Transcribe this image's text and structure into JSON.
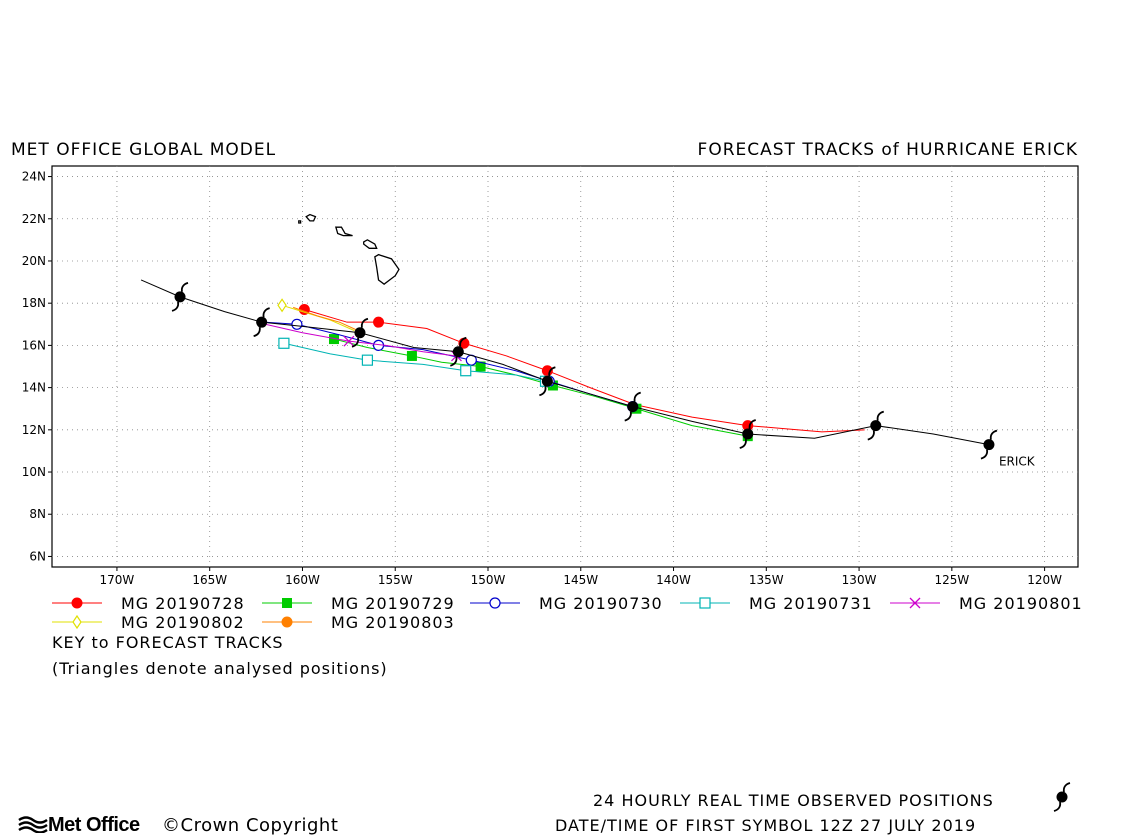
{
  "header": {
    "left_title": "MET OFFICE GLOBAL MODEL",
    "right_title": "FORECAST TRACKS of HURRICANE ERICK"
  },
  "legend": {
    "key_title": "KEY to FORECAST TRACKS",
    "note": "(Triangles denote analysed positions)"
  },
  "footer": {
    "logo_text": "Met Office",
    "copyright": "©Crown Copyright",
    "line1": "24 HOURLY REAL TIME OBSERVED POSITIONS",
    "line2": "DATE/TIME OF FIRST SYMBOL 12Z 27 JULY 2019"
  },
  "chart_data": {
    "type": "line",
    "xlim": [
      -173.5,
      -118.2
    ],
    "ylim": [
      5.5,
      24.5
    ],
    "x_ticks": [
      -170,
      -165,
      -160,
      -155,
      -150,
      -145,
      -140,
      -135,
      -130,
      -125,
      -120
    ],
    "x_tick_labels": [
      "170W",
      "165W",
      "160W",
      "155W",
      "150W",
      "145W",
      "140W",
      "135W",
      "130W",
      "125W",
      "120W"
    ],
    "y_ticks": [
      6,
      8,
      10,
      12,
      14,
      16,
      18,
      20,
      22,
      24
    ],
    "y_tick_labels": [
      "6N",
      "8N",
      "10N",
      "12N",
      "14N",
      "16N",
      "18N",
      "20N",
      "22N",
      "24N"
    ],
    "grid": true,
    "storm_label": "ERICK",
    "observed": {
      "color": "#000000",
      "line": [
        [
          -168.7,
          19.1
        ],
        [
          -166.6,
          18.3
        ],
        [
          -164.2,
          17.6
        ],
        [
          -162.2,
          17.1
        ],
        [
          -160.0,
          16.9
        ],
        [
          -156.9,
          16.6
        ],
        [
          -154.0,
          15.9
        ],
        [
          -151.6,
          15.7
        ],
        [
          -149.2,
          15.1
        ],
        [
          -146.8,
          14.3
        ],
        [
          -144.5,
          13.7
        ],
        [
          -142.2,
          13.1
        ],
        [
          -139.0,
          12.4
        ],
        [
          -136.0,
          11.8
        ],
        [
          -132.4,
          11.6
        ],
        [
          -129.1,
          12.2
        ],
        [
          -126.0,
          11.8
        ],
        [
          -123.0,
          11.3
        ]
      ],
      "symbols": [
        [
          -166.6,
          18.3
        ],
        [
          -162.2,
          17.1
        ],
        [
          -156.9,
          16.6
        ],
        [
          -151.6,
          15.7
        ],
        [
          -146.8,
          14.3
        ],
        [
          -142.2,
          13.1
        ],
        [
          -136.0,
          11.8
        ],
        [
          -129.1,
          12.2
        ],
        [
          -123.0,
          11.3
        ]
      ]
    },
    "series": [
      {
        "name": "MG 20190728",
        "color": "#ff0000",
        "marker": "filled-circle",
        "points": [
          [
            -129.7,
            12.0
          ],
          [
            -132.0,
            11.9
          ],
          [
            -136.0,
            12.2
          ],
          [
            -139.0,
            12.6
          ],
          [
            -142.1,
            13.2
          ],
          [
            -144.5,
            14.0
          ],
          [
            -146.8,
            14.8
          ],
          [
            -149.0,
            15.5
          ],
          [
            -151.3,
            16.1
          ],
          [
            -153.3,
            16.8
          ],
          [
            -155.9,
            17.1
          ],
          [
            -157.6,
            17.1
          ],
          [
            -159.9,
            17.7
          ]
        ],
        "markers": [
          [
            -136.0,
            12.2
          ],
          [
            -146.8,
            14.8
          ],
          [
            -151.3,
            16.1
          ],
          [
            -155.9,
            17.1
          ],
          [
            -159.9,
            17.7
          ]
        ]
      },
      {
        "name": "MG 20190729",
        "color": "#00cc00",
        "marker": "filled-square",
        "points": [
          [
            -136.0,
            11.7
          ],
          [
            -139.0,
            12.2
          ],
          [
            -142.0,
            13.0
          ],
          [
            -144.3,
            13.6
          ],
          [
            -146.5,
            14.1
          ],
          [
            -148.5,
            14.6
          ],
          [
            -150.4,
            15.0
          ],
          [
            -152.5,
            15.2
          ],
          [
            -154.1,
            15.5
          ],
          [
            -156.5,
            15.9
          ],
          [
            -158.3,
            16.3
          ]
        ],
        "markers": [
          [
            -136.0,
            11.7
          ],
          [
            -142.0,
            13.0
          ],
          [
            -146.5,
            14.1
          ],
          [
            -150.4,
            15.0
          ],
          [
            -154.1,
            15.5
          ],
          [
            -158.3,
            16.3
          ]
        ]
      },
      {
        "name": "MG 20190730",
        "color": "#0000cc",
        "marker": "open-circle",
        "points": [
          [
            -142.2,
            13.1
          ],
          [
            -144.5,
            13.7
          ],
          [
            -146.7,
            14.3
          ],
          [
            -148.5,
            14.8
          ],
          [
            -150.9,
            15.3
          ],
          [
            -153.5,
            15.8
          ],
          [
            -155.9,
            16.0
          ],
          [
            -158.0,
            16.5
          ],
          [
            -160.3,
            17.0
          ],
          [
            -162.1,
            17.1
          ]
        ],
        "markers": [
          [
            -142.2,
            13.1
          ],
          [
            -146.7,
            14.3
          ],
          [
            -150.9,
            15.3
          ],
          [
            -155.9,
            16.0
          ],
          [
            -160.3,
            17.0
          ]
        ]
      },
      {
        "name": "MG 20190731",
        "color": "#00b4b4",
        "marker": "open-square",
        "points": [
          [
            -146.9,
            14.3
          ],
          [
            -148.5,
            14.6
          ],
          [
            -151.2,
            14.8
          ],
          [
            -153.5,
            15.1
          ],
          [
            -156.5,
            15.3
          ],
          [
            -158.5,
            15.6
          ],
          [
            -161.0,
            16.1
          ]
        ],
        "markers": [
          [
            -146.9,
            14.3
          ],
          [
            -151.2,
            14.8
          ],
          [
            -156.5,
            15.3
          ],
          [
            -161.0,
            16.1
          ]
        ]
      },
      {
        "name": "MG 20190801",
        "color": "#cc00cc",
        "marker": "cross",
        "points": [
          [
            -151.7,
            15.5
          ],
          [
            -153.5,
            15.7
          ],
          [
            -155.5,
            16.0
          ],
          [
            -157.5,
            16.2
          ],
          [
            -160.0,
            16.6
          ],
          [
            -162.0,
            17.0
          ]
        ],
        "markers": [
          [
            -151.7,
            15.5
          ],
          [
            -157.5,
            16.2
          ]
        ]
      },
      {
        "name": "MG 20190802",
        "color": "#e0e000",
        "marker": "open-diamond",
        "points": [
          [
            -157.2,
            16.7
          ],
          [
            -158.5,
            17.2
          ],
          [
            -160.0,
            17.6
          ],
          [
            -161.1,
            17.9
          ]
        ],
        "markers": [
          [
            -161.1,
            17.9
          ]
        ]
      },
      {
        "name": "MG 20190803",
        "color": "#ff8000",
        "marker": "filled-circle",
        "points": [
          [
            -157.0,
            16.7
          ],
          [
            -158.0,
            17.1
          ],
          [
            -159.2,
            17.4
          ],
          [
            -160.5,
            17.8
          ]
        ],
        "markers": []
      }
    ],
    "islands": [
      [
        [
          -156.1,
          20.2
        ],
        [
          -155.9,
          20.3
        ],
        [
          -155.2,
          20.1
        ],
        [
          -154.8,
          19.6
        ],
        [
          -155.0,
          19.3
        ],
        [
          -155.6,
          18.9
        ],
        [
          -155.9,
          19.1
        ],
        [
          -156.0,
          19.7
        ]
      ],
      [
        [
          -156.7,
          20.9
        ],
        [
          -156.5,
          21.0
        ],
        [
          -156.1,
          20.8
        ],
        [
          -156.0,
          20.6
        ],
        [
          -156.4,
          20.6
        ],
        [
          -156.7,
          20.8
        ]
      ],
      [
        [
          -157.3,
          21.2
        ],
        [
          -157.7,
          21.3
        ],
        [
          -157.9,
          21.6
        ],
        [
          -158.2,
          21.6
        ],
        [
          -158.1,
          21.3
        ],
        [
          -157.8,
          21.2
        ]
      ],
      [
        [
          -159.4,
          21.9
        ],
        [
          -159.6,
          21.9
        ],
        [
          -159.8,
          22.1
        ],
        [
          -159.6,
          22.2
        ],
        [
          -159.3,
          22.1
        ]
      ],
      [
        [
          -160.1,
          21.9
        ],
        [
          -160.2,
          21.9
        ],
        [
          -160.2,
          21.8
        ],
        [
          -160.1,
          21.8
        ]
      ]
    ]
  }
}
